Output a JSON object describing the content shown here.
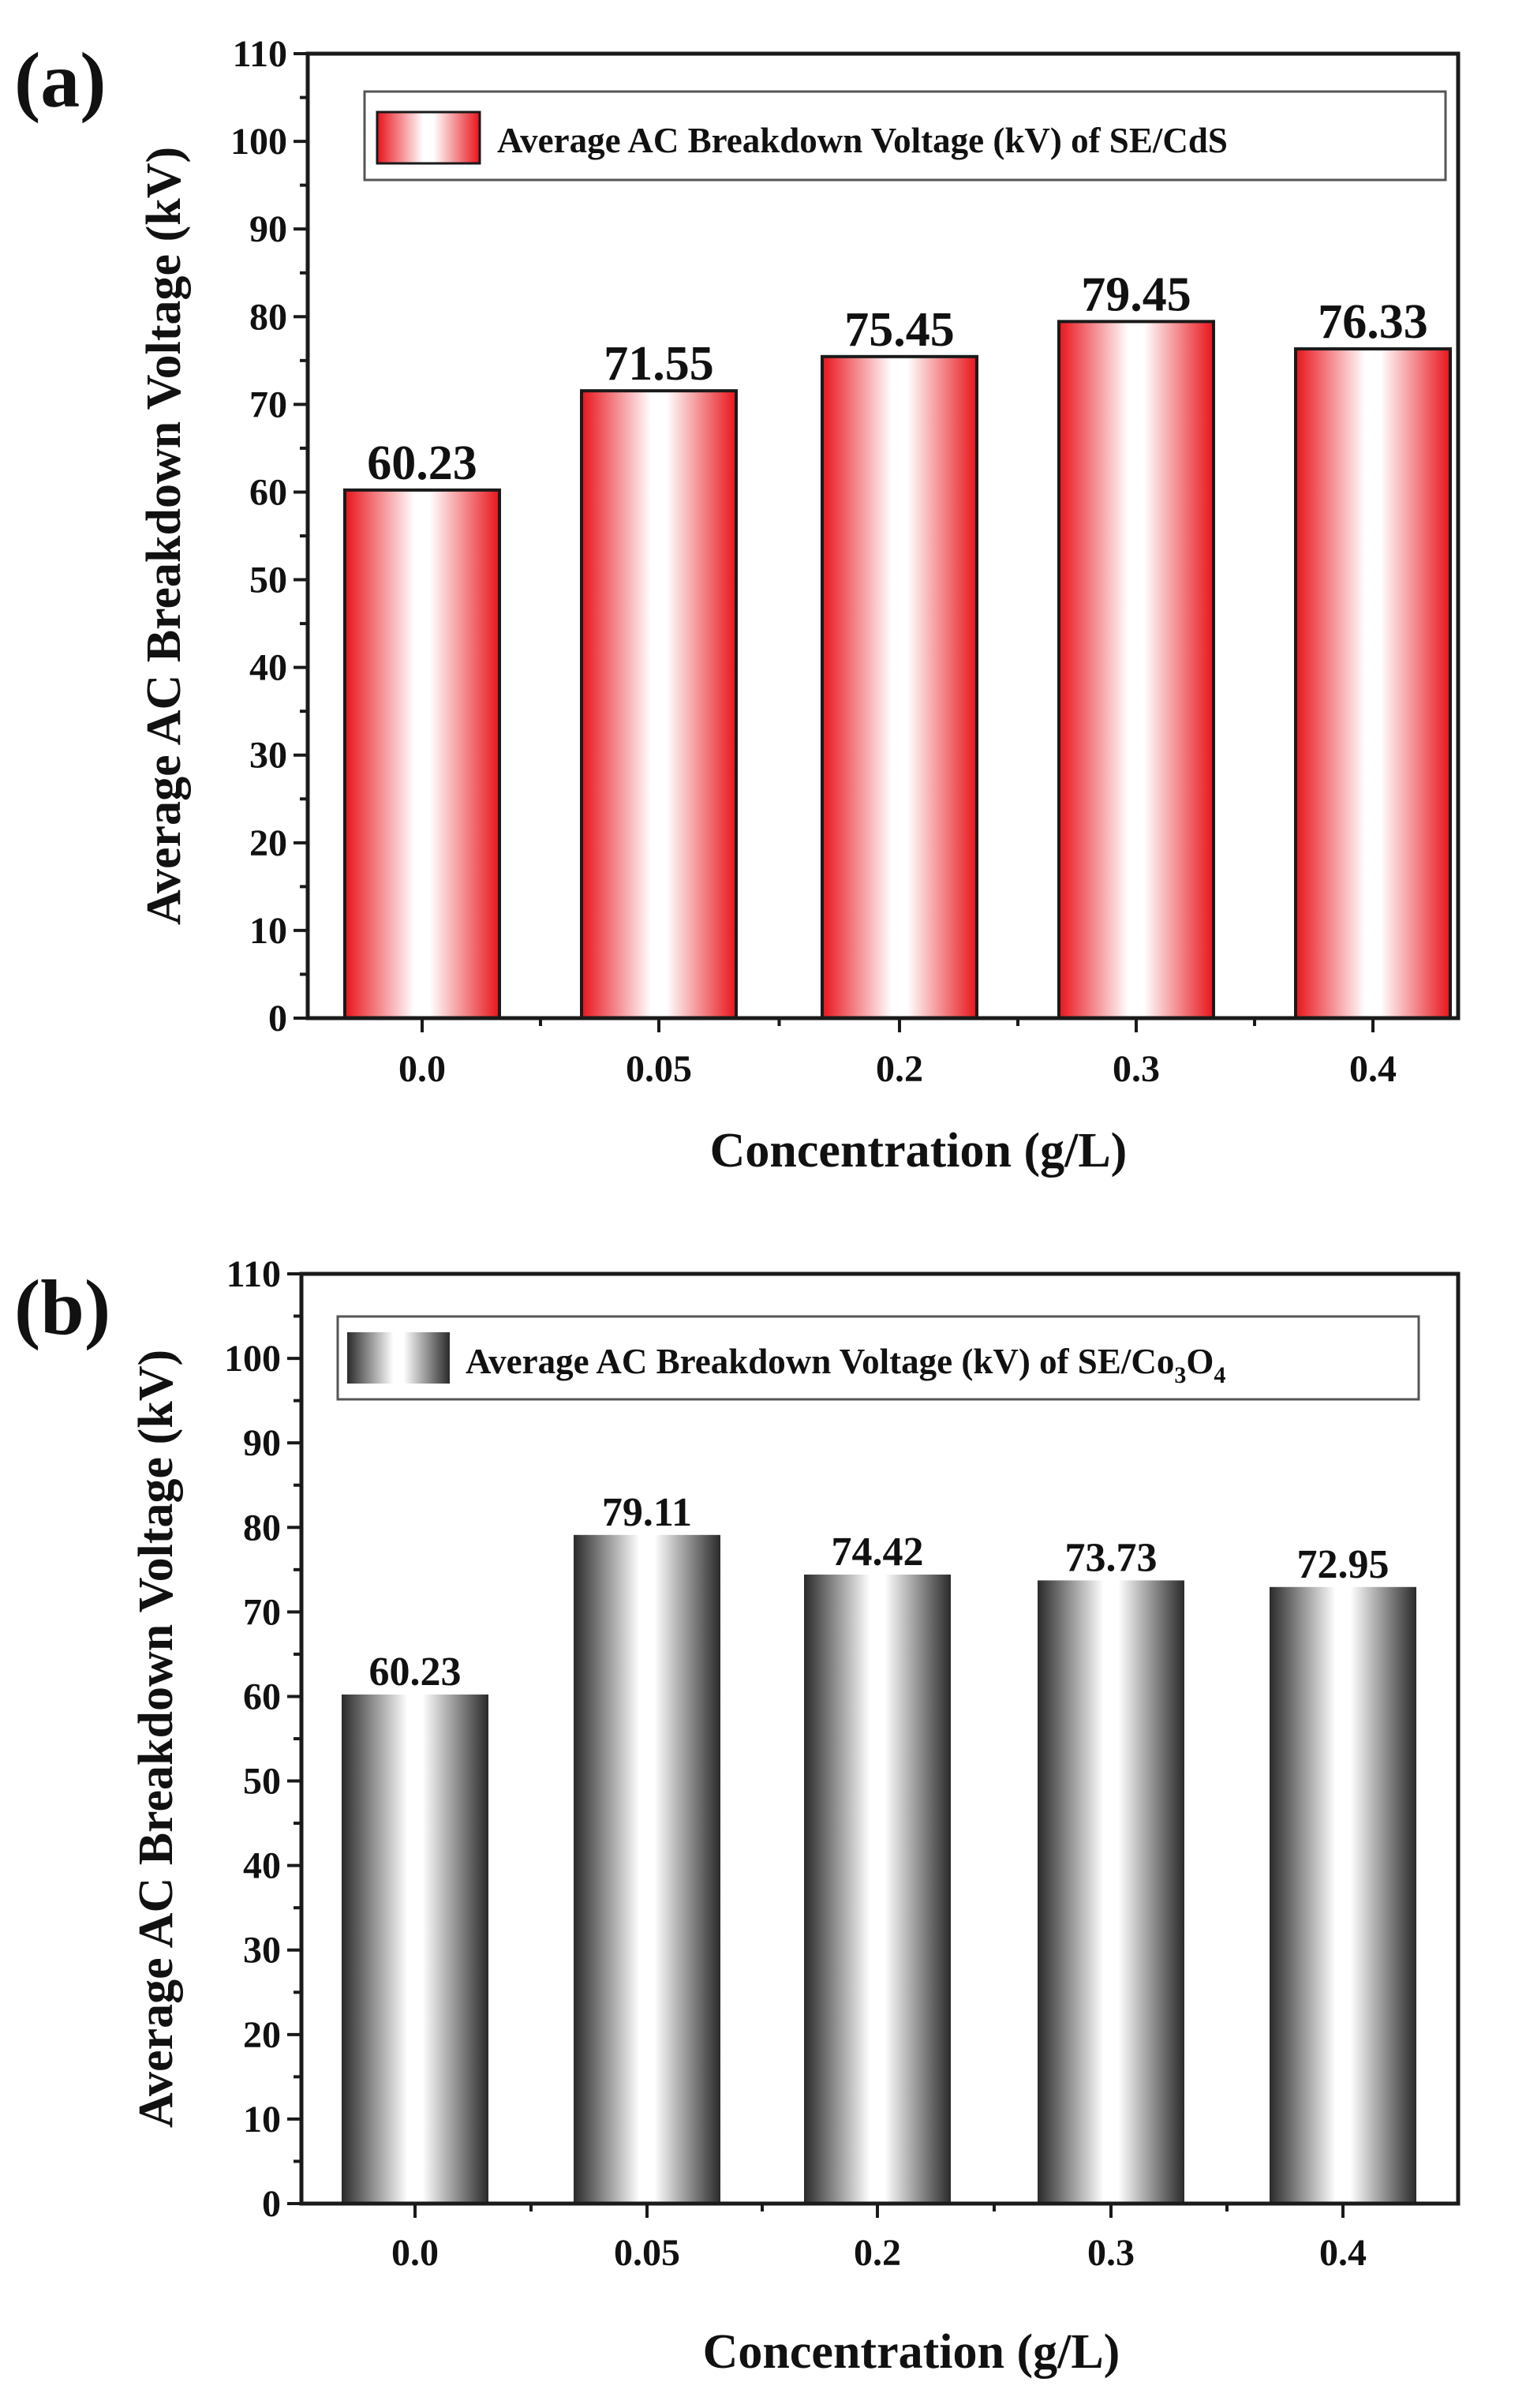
{
  "figure": {
    "panels": [
      "(a)",
      "(b)"
    ]
  },
  "chart_data": [
    {
      "panel": "(a)",
      "type": "bar",
      "categories": [
        "0.0",
        "0.05",
        "0.2",
        "0.3",
        "0.4"
      ],
      "values": [
        60.23,
        71.55,
        75.45,
        79.45,
        76.33
      ],
      "value_labels": [
        "60.23",
        "71.55",
        "75.45",
        "79.45",
        "76.33"
      ],
      "title": "",
      "xlabel": "Concentration (g/L)",
      "ylabel": "Average AC Breakdown Voltage (kV)",
      "ylim": [
        0,
        110
      ],
      "yticks": [
        0,
        10,
        20,
        30,
        40,
        50,
        60,
        70,
        80,
        90,
        100,
        110
      ],
      "ytick_labels": [
        "0",
        "10",
        "20",
        "30",
        "40",
        "50",
        "60",
        "70",
        "80",
        "90",
        "100",
        "110"
      ],
      "legend": {
        "label": "Average AC Breakdown Voltage (kV) of SE/CdS",
        "placement": "top"
      },
      "bar_color": "#e8141b",
      "grid": false
    },
    {
      "panel": "(b)",
      "type": "bar",
      "categories": [
        "0.0",
        "0.05",
        "0.2",
        "0.3",
        "0.4"
      ],
      "values": [
        60.23,
        79.11,
        74.42,
        73.73,
        72.95
      ],
      "value_labels": [
        "60.23",
        "79.11",
        "74.42",
        "73.73",
        "72.95"
      ],
      "title": "",
      "xlabel": "Concentration (g/L)",
      "ylabel": "Average AC Breakdown Voltage (kV)",
      "ylim": [
        0,
        110
      ],
      "yticks": [
        0,
        10,
        20,
        30,
        40,
        50,
        60,
        70,
        80,
        90,
        100,
        110
      ],
      "ytick_labels": [
        "0",
        "10",
        "20",
        "30",
        "40",
        "50",
        "60",
        "70",
        "80",
        "90",
        "100",
        "110"
      ],
      "legend": {
        "label": "Average AC Breakdown Voltage (kV) of SE/Co₃O₄",
        "label_main": "Average AC Breakdown Voltage (kV) of SE/Co",
        "sub1": "3",
        "mid": "O",
        "sub2": "4",
        "placement": "top"
      },
      "bar_color": "#2a2a2a",
      "grid": false
    }
  ]
}
